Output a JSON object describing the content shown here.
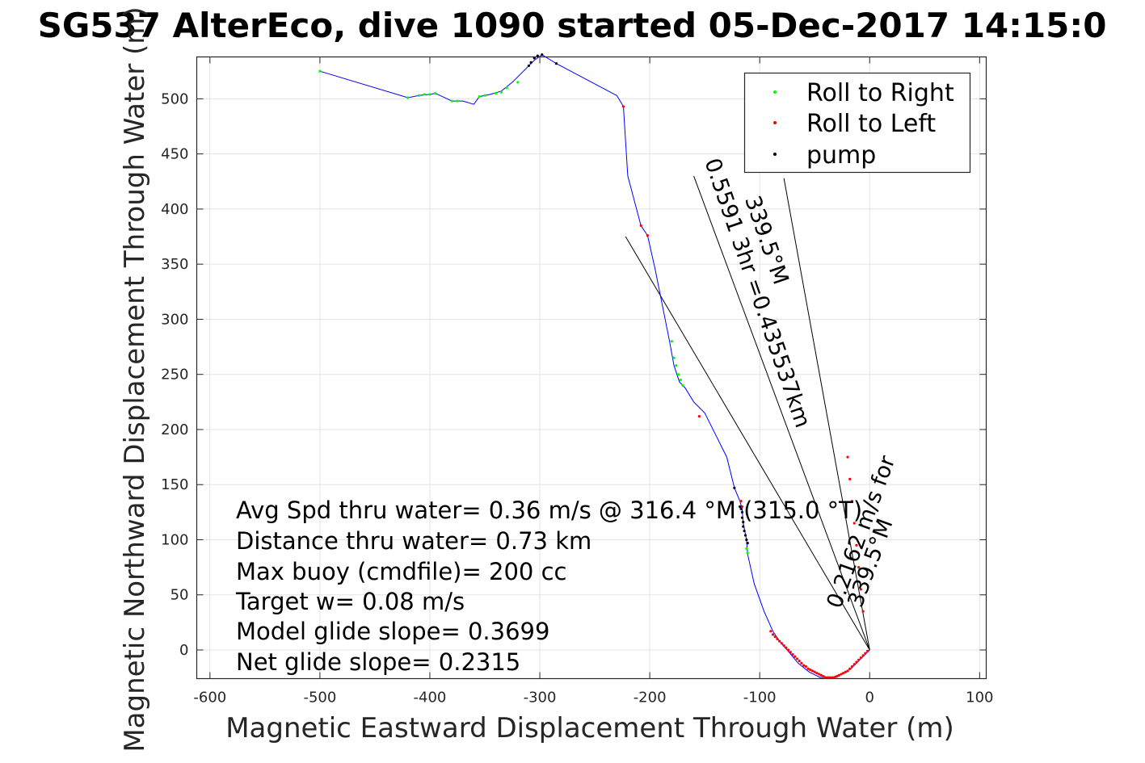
{
  "chart_data": {
    "type": "line",
    "title": "SG537 AlterEco, dive 1090 started 05-Dec-2017 14:15:0",
    "xlabel": "Magnetic Eastward Displacement Through Water (m)",
    "ylabel": "Magnetic Northward Displacement Through Water (m)",
    "xlim": [
      -612,
      106
    ],
    "ylim": [
      -26,
      538
    ],
    "xticks": [
      -600,
      -500,
      -400,
      -300,
      -200,
      -100,
      0,
      100
    ],
    "yticks": [
      0,
      50,
      100,
      150,
      200,
      250,
      300,
      350,
      400,
      450,
      500
    ],
    "grid": true,
    "legend_position": "top-right",
    "legend": [
      {
        "label": "Roll to Right",
        "color": "#00ff00"
      },
      {
        "label": "Roll to Left",
        "color": "#ff0000"
      },
      {
        "label": "pump",
        "color": "#000000"
      }
    ],
    "track": {
      "name": "",
      "color": "#0000ff",
      "x": [
        -500,
        -420,
        -410,
        -400,
        -395,
        -380,
        -370,
        -360,
        -355,
        -345,
        -335,
        -325,
        -305,
        -298,
        -285,
        -230,
        -224,
        -220,
        -208,
        -202,
        -195,
        -182,
        -178,
        -173,
        -168,
        -160,
        -150,
        -140,
        -130,
        -123,
        -118,
        -116,
        -115,
        -112,
        -111,
        -105,
        -96,
        -88,
        -82,
        -75,
        -65,
        -55,
        -45,
        -35,
        -25,
        -17,
        -10,
        -5,
        0
      ],
      "y": [
        525,
        501,
        503,
        504,
        505,
        498,
        498,
        495,
        502,
        504,
        507,
        515,
        535,
        540,
        532,
        503,
        493,
        430,
        385,
        376,
        345,
        280,
        258,
        243,
        238,
        225,
        215,
        195,
        175,
        147,
        135,
        128,
        115,
        100,
        87,
        60,
        35,
        17,
        8,
        0,
        -12,
        -20,
        -25,
        -25,
        -22,
        -17,
        -10,
        -5,
        0
      ]
    },
    "roll_right": {
      "color": "#00ff00",
      "x": [
        -500,
        -420,
        -410,
        -405,
        -400,
        -395,
        -380,
        -375,
        -355,
        -350,
        -340,
        -335,
        -330,
        -320,
        -180,
        -178,
        -176,
        -174,
        -172,
        -170,
        -112,
        -111
      ],
      "y": [
        525,
        501,
        503,
        504,
        504,
        505,
        498,
        498,
        502,
        503,
        505,
        506,
        510,
        515,
        280,
        265,
        258,
        250,
        245,
        240,
        92,
        88
      ]
    },
    "roll_left": {
      "color": "#ff0000",
      "x": [
        -224,
        -208,
        -202,
        -155,
        -117,
        -116,
        -90,
        -88,
        -86,
        -84,
        -82,
        -80,
        -78,
        -76,
        -74,
        -72,
        -70,
        -68,
        -66,
        -64,
        -62,
        -60,
        -58,
        -56,
        -54,
        -52,
        -50,
        -48,
        -46,
        -44,
        -42,
        -40,
        -38,
        -36,
        -34,
        -32,
        -30,
        -28,
        -26,
        -24,
        -22,
        -20,
        -18,
        -16,
        -14,
        -12,
        -10,
        -8,
        -6,
        -4,
        -2,
        -6,
        -8,
        -10,
        -12,
        -14,
        -16,
        -18,
        -20
      ],
      "y": [
        493,
        385,
        376,
        212,
        135,
        130,
        17,
        14,
        12,
        10,
        8,
        6,
        4,
        2,
        0,
        -2,
        -4,
        -6,
        -8,
        -10,
        -12,
        -14,
        -15,
        -17,
        -18,
        -19,
        -20,
        -21,
        -22,
        -23,
        -24,
        -25,
        -25,
        -25,
        -25,
        -25,
        -24,
        -23,
        -22,
        -21,
        -20,
        -19,
        -17,
        -15,
        -13,
        -11,
        -9,
        -7,
        -5,
        -3,
        -1,
        35,
        55,
        75,
        95,
        115,
        135,
        155,
        175
      ]
    },
    "pump": {
      "color": "#000000",
      "x": [
        -310,
        -308,
        -305,
        -302,
        -298,
        -285,
        -123,
        -118,
        -117,
        -116,
        -116,
        -115,
        -115,
        -114,
        -113,
        -112,
        -111
      ],
      "y": [
        530,
        533,
        537,
        539,
        540,
        532,
        147,
        130,
        128,
        125,
        120,
        116,
        112,
        108,
        104,
        100,
        97
      ]
    },
    "guide_lines": [
      {
        "x1": 0,
        "y1": 0,
        "x2": -222,
        "y2": 375
      },
      {
        "x1": 0,
        "y1": 0,
        "x2": -78,
        "y2": 428
      },
      {
        "x1": 0,
        "y1": 0,
        "x2": -160,
        "y2": 430
      }
    ],
    "annotations": [
      "0.5591 3hr =0.435537km",
      "339.5°M",
      "0.2162 m/s for",
      "339.5°M"
    ],
    "stats": [
      "Avg Spd thru water=  0.36 m/s @ 316.4 °M (315.0 °T)",
      "Distance thru water=  0.73 km",
      "Max buoy (cmdfile)= 200 cc",
      "Target w= 0.08 m/s",
      "Model glide slope= 0.3699",
      "Net glide slope= 0.2315"
    ]
  }
}
